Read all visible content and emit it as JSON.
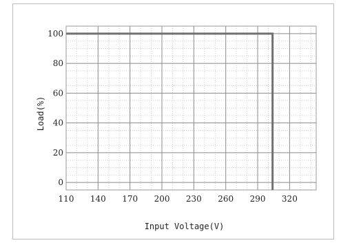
{
  "chart_data": {
    "type": "line",
    "title": "",
    "xlabel": "Input Voltage(V)",
    "ylabel": "Load(%)",
    "xlim": [
      110,
      345
    ],
    "ylim": [
      -5,
      105
    ],
    "x_ticks": [
      110,
      140,
      170,
      200,
      230,
      260,
      290,
      320
    ],
    "y_ticks": [
      0,
      20,
      40,
      60,
      80,
      100
    ],
    "grid": true,
    "legend": "none",
    "series": [
      {
        "x": [
          110,
          304,
          304
        ],
        "y": [
          100,
          100,
          -5
        ]
      }
    ],
    "colors": {
      "series": "#707070",
      "major_grid": "#8c8c8c",
      "minor_grid": "#cfcfcf",
      "frame": "#9a9a9a"
    }
  }
}
